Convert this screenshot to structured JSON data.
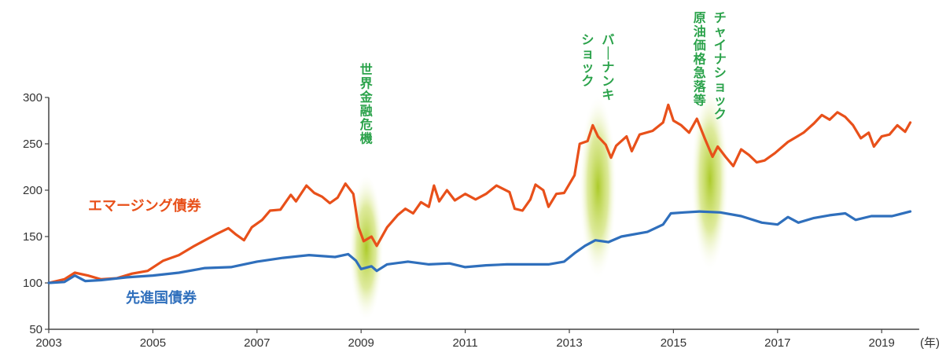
{
  "chart_data": {
    "type": "line",
    "title": "",
    "xlabel": "",
    "ylabel": "",
    "x_unit": "(年)",
    "xlim": [
      2003,
      2019.6
    ],
    "ylim": [
      50,
      300
    ],
    "x_ticks": [
      "2003",
      "2005",
      "2007",
      "2009",
      "2011",
      "2013",
      "2015",
      "2017",
      "2019"
    ],
    "y_ticks": [
      "50",
      "100",
      "150",
      "200",
      "250",
      "300"
    ],
    "grid": false,
    "series": [
      {
        "name": "エマージング債券",
        "color": "#e8501a",
        "points": [
          [
            2003.0,
            100
          ],
          [
            2003.3,
            104
          ],
          [
            2003.5,
            111
          ],
          [
            2003.75,
            108
          ],
          [
            2004.0,
            104
          ],
          [
            2004.3,
            105
          ],
          [
            2004.6,
            110
          ],
          [
            2004.9,
            113
          ],
          [
            2005.2,
            124
          ],
          [
            2005.5,
            130
          ],
          [
            2005.8,
            140
          ],
          [
            2006.0,
            146
          ],
          [
            2006.2,
            152
          ],
          [
            2006.45,
            159
          ],
          [
            2006.6,
            152
          ],
          [
            2006.75,
            146
          ],
          [
            2006.9,
            160
          ],
          [
            2007.1,
            168
          ],
          [
            2007.25,
            178
          ],
          [
            2007.45,
            179
          ],
          [
            2007.65,
            195
          ],
          [
            2007.75,
            188
          ],
          [
            2007.95,
            205
          ],
          [
            2008.1,
            197
          ],
          [
            2008.25,
            193
          ],
          [
            2008.4,
            186
          ],
          [
            2008.55,
            192
          ],
          [
            2008.7,
            207
          ],
          [
            2008.85,
            196
          ],
          [
            2008.95,
            160
          ],
          [
            2009.05,
            145
          ],
          [
            2009.2,
            150
          ],
          [
            2009.3,
            140
          ],
          [
            2009.5,
            160
          ],
          [
            2009.7,
            173
          ],
          [
            2009.85,
            180
          ],
          [
            2010.0,
            175
          ],
          [
            2010.15,
            187
          ],
          [
            2010.3,
            182
          ],
          [
            2010.4,
            205
          ],
          [
            2010.5,
            188
          ],
          [
            2010.65,
            200
          ],
          [
            2010.8,
            189
          ],
          [
            2011.0,
            196
          ],
          [
            2011.2,
            190
          ],
          [
            2011.4,
            196
          ],
          [
            2011.6,
            205
          ],
          [
            2011.85,
            198
          ],
          [
            2011.95,
            180
          ],
          [
            2012.1,
            178
          ],
          [
            2012.25,
            190
          ],
          [
            2012.35,
            206
          ],
          [
            2012.5,
            200
          ],
          [
            2012.6,
            182
          ],
          [
            2012.75,
            196
          ],
          [
            2012.9,
            197
          ],
          [
            2013.1,
            216
          ],
          [
            2013.2,
            250
          ],
          [
            2013.35,
            253
          ],
          [
            2013.45,
            270
          ],
          [
            2013.55,
            258
          ],
          [
            2013.7,
            249
          ],
          [
            2013.8,
            235
          ],
          [
            2013.9,
            248
          ],
          [
            2014.1,
            258
          ],
          [
            2014.2,
            242
          ],
          [
            2014.35,
            260
          ],
          [
            2014.6,
            264
          ],
          [
            2014.8,
            273
          ],
          [
            2014.9,
            292
          ],
          [
            2015.0,
            275
          ],
          [
            2015.15,
            270
          ],
          [
            2015.3,
            262
          ],
          [
            2015.45,
            277
          ],
          [
            2015.6,
            256
          ],
          [
            2015.75,
            236
          ],
          [
            2015.85,
            247
          ],
          [
            2016.0,
            236
          ],
          [
            2016.15,
            226
          ],
          [
            2016.3,
            244
          ],
          [
            2016.45,
            238
          ],
          [
            2016.6,
            230
          ],
          [
            2016.75,
            232
          ],
          [
            2016.95,
            240
          ],
          [
            2017.2,
            252
          ],
          [
            2017.5,
            262
          ],
          [
            2017.7,
            272
          ],
          [
            2017.85,
            281
          ],
          [
            2018.0,
            276
          ],
          [
            2018.15,
            284
          ],
          [
            2018.3,
            279
          ],
          [
            2018.45,
            270
          ],
          [
            2018.6,
            256
          ],
          [
            2018.75,
            262
          ],
          [
            2018.85,
            247
          ],
          [
            2019.0,
            258
          ],
          [
            2019.15,
            260
          ],
          [
            2019.3,
            270
          ],
          [
            2019.45,
            263
          ],
          [
            2019.55,
            273
          ]
        ]
      },
      {
        "name": "先進国債券",
        "color": "#2f6fbc",
        "points": [
          [
            2003.0,
            100
          ],
          [
            2003.3,
            101
          ],
          [
            2003.5,
            108
          ],
          [
            2003.7,
            102
          ],
          [
            2004.0,
            103
          ],
          [
            2004.5,
            106
          ],
          [
            2005.0,
            108
          ],
          [
            2005.5,
            111
          ],
          [
            2006.0,
            116
          ],
          [
            2006.5,
            117
          ],
          [
            2007.0,
            123
          ],
          [
            2007.5,
            127
          ],
          [
            2008.0,
            130
          ],
          [
            2008.5,
            128
          ],
          [
            2008.75,
            131
          ],
          [
            2008.9,
            124
          ],
          [
            2009.0,
            115
          ],
          [
            2009.2,
            118
          ],
          [
            2009.3,
            113
          ],
          [
            2009.5,
            120
          ],
          [
            2009.9,
            123
          ],
          [
            2010.3,
            120
          ],
          [
            2010.7,
            121
          ],
          [
            2011.0,
            117
          ],
          [
            2011.4,
            119
          ],
          [
            2011.8,
            120
          ],
          [
            2012.2,
            120
          ],
          [
            2012.6,
            120
          ],
          [
            2012.9,
            123
          ],
          [
            2013.1,
            132
          ],
          [
            2013.3,
            140
          ],
          [
            2013.5,
            146
          ],
          [
            2013.75,
            144
          ],
          [
            2014.0,
            150
          ],
          [
            2014.5,
            155
          ],
          [
            2014.8,
            163
          ],
          [
            2014.95,
            175
          ],
          [
            2015.2,
            176
          ],
          [
            2015.5,
            177
          ],
          [
            2015.9,
            176
          ],
          [
            2016.3,
            172
          ],
          [
            2016.7,
            165
          ],
          [
            2017.0,
            163
          ],
          [
            2017.2,
            171
          ],
          [
            2017.4,
            165
          ],
          [
            2017.7,
            170
          ],
          [
            2018.0,
            173
          ],
          [
            2018.3,
            175
          ],
          [
            2018.5,
            168
          ],
          [
            2018.8,
            172
          ],
          [
            2019.2,
            172
          ],
          [
            2019.55,
            177
          ]
        ]
      }
    ],
    "series_labels": [
      {
        "text": "エマージング債券",
        "color": "#e8501a"
      },
      {
        "text": "先進国債券",
        "color": "#2f6fbc"
      }
    ],
    "annotations": [
      {
        "lines": [
          "世界金融危機"
        ],
        "x": 2009.1
      },
      {
        "lines": [
          "バーナンキ",
          "ショック"
        ],
        "x": 2013.55
      },
      {
        "lines": [
          "チャイナショック",
          "原油価格急落等"
        ],
        "x": 2015.7
      }
    ],
    "highlight_color": "#a8c820"
  }
}
